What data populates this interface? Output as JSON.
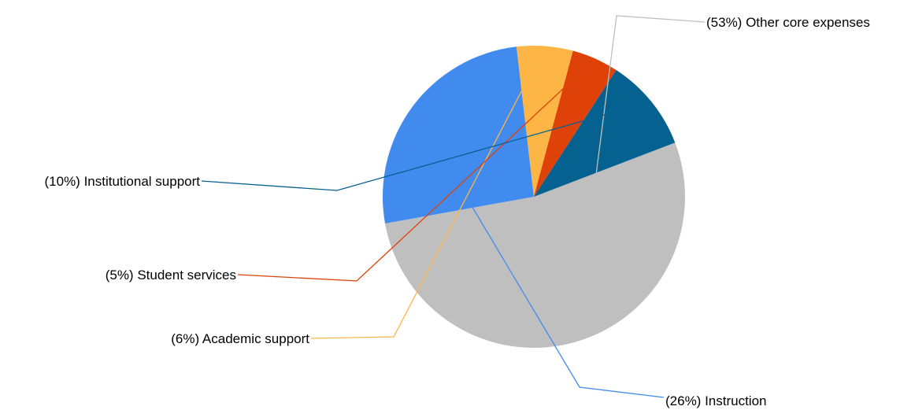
{
  "chart_data": {
    "type": "pie",
    "title": "",
    "slices": [
      {
        "category": "Other core expenses",
        "value": 53,
        "label": "(53%) Other core expenses",
        "color": "#bfbfbf"
      },
      {
        "category": "Instruction",
        "value": 26,
        "label": "(26%) Instruction",
        "color": "#428bee"
      },
      {
        "category": "Academic support",
        "value": 6,
        "label": "(6%) Academic support",
        "color": "#fdb545"
      },
      {
        "category": "Student services",
        "value": 5,
        "label": "(5%) Student services",
        "color": "#de4208"
      },
      {
        "category": "Institutional support",
        "value": 10,
        "label": "(10%) Institutional support",
        "color": "#056190"
      }
    ],
    "legend": "none",
    "label_style": "outside with leader lines"
  }
}
